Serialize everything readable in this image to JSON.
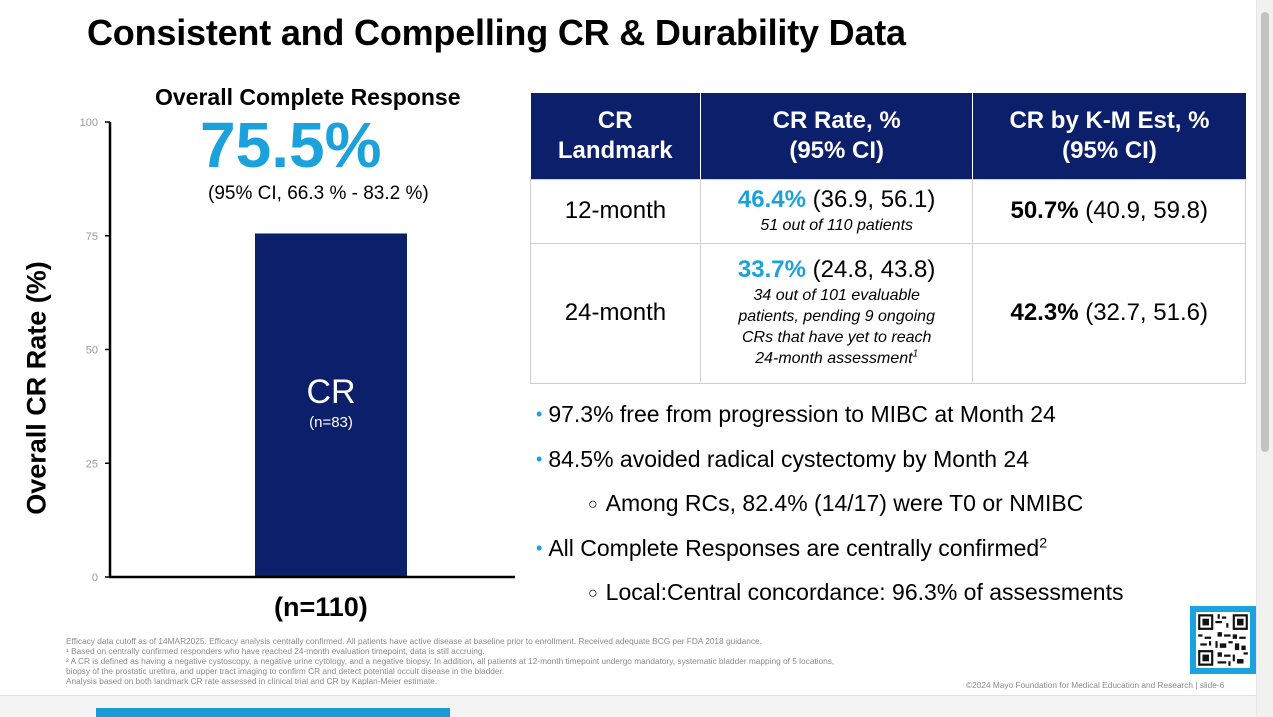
{
  "slide": {
    "title": "Consistent and Compelling CR & Durability Data"
  },
  "chart": {
    "heading": "Overall Complete Response",
    "big_value": "75.5%",
    "ci_text": "(95% CI, 66.3 % - 83.2 %)",
    "n_label": "(n=110)"
  },
  "chart_data": {
    "type": "bar",
    "categories": [
      "CR"
    ],
    "values": [
      75.5
    ],
    "bar_labels": [
      {
        "label": "CR",
        "sublabel": "(n=83)"
      }
    ],
    "ylabel": "Overall CR Rate (%)",
    "yticks": [
      "0",
      "25",
      "50",
      "75",
      "100"
    ],
    "ylim": [
      0,
      100
    ],
    "bar_color": "#0c1f6b"
  },
  "table": {
    "headers": [
      [
        "CR",
        "Landmark"
      ],
      [
        "CR Rate, %",
        "(95% CI)"
      ],
      [
        "CR by K-M Est, %",
        "(95% CI)"
      ]
    ],
    "rows": [
      {
        "landmark": "12-month",
        "rate_value": "46.4%",
        "rate_ci": "(36.9, 56.1)",
        "rate_note": "51 out of 110 patients",
        "km_value": "50.7%",
        "km_ci": "(40.9, 59.8)"
      },
      {
        "landmark": "24-month",
        "rate_value": "33.7%",
        "rate_ci": "(24.8, 43.8)",
        "rate_note_lines": [
          "34 out of 101 evaluable",
          "patients, pending 9 ongoing",
          "CRs that have yet to reach",
          "24-month assessment"
        ],
        "rate_note_sup": "1",
        "km_value": "42.3%",
        "km_ci": "(32.7, 51.6)"
      }
    ]
  },
  "bullets": [
    {
      "text": "97.3% free from progression to MIBC at Month 24"
    },
    {
      "text": "84.5% avoided radical cystectomy by Month 24"
    },
    {
      "text": "Among RCs, 82.4% (14/17) were T0 or NMIBC"
    },
    {
      "text": "All Complete Responses are centrally confirmed",
      "sup": "2"
    },
    {
      "text": "Local:Central concordance: 96.3% of assessments"
    }
  ],
  "footnotes": [
    "Efficacy data cutoff as of 14MAR2025. Efficacy analysis centrally confirmed. All patients have active disease at baseline prior to enrollment. Received adequate BCG per FDA 2018 guidance.",
    "¹ Based on centrally confirmed responders who have reached 24-month evaluation timepoint, data is still accruing.",
    "² A CR is defined as having a negative cystoscopy, a negative urine cytology, and a negative biopsy. In addition, all patients at 12-month timepoint undergo mandatory, systematic bladder mapping of 5 locations,",
    "biopsy of the prostatic urethra, and upper tract imaging to confirm CR and detect potential occult disease in the bladder.",
    "Analysis based on both landmark CR rate assessed in clinical trial and CR by Kaplan-Meier estimate."
  ],
  "copyright": "©2024 Mayo Foundation for Medical Education and Research  |  slide-6",
  "colors": {
    "accent": "#1ba1dc",
    "navy": "#0c1f6b"
  }
}
